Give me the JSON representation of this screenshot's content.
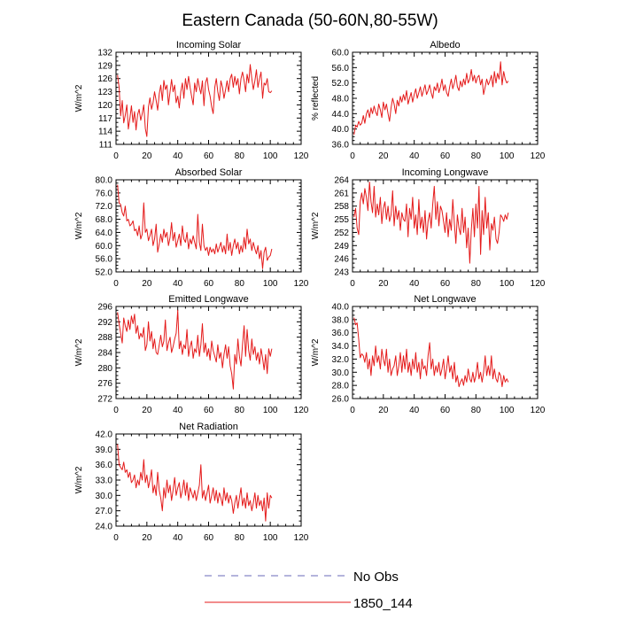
{
  "title": "Eastern Canada (50-60N,80-55W)",
  "legend": [
    {
      "label": "No Obs",
      "color": "#6a6ab8",
      "dash": true
    },
    {
      "label": "1850_144",
      "color": "#e41a1a",
      "dash": false
    }
  ],
  "chart_data": [
    {
      "type": "line",
      "title": "Incoming Solar",
      "ylabel": "W/m^2",
      "xlim": [
        0,
        120
      ],
      "xticks": [
        0,
        20,
        40,
        60,
        80,
        100,
        120
      ],
      "ylim": [
        111,
        132
      ],
      "yticks": [
        111,
        114,
        117,
        120,
        123,
        126,
        129,
        132
      ],
      "ytick_labels": [
        "111",
        "114",
        "117",
        "120",
        "123",
        "126",
        "129",
        "132"
      ],
      "color": "#e41a1a",
      "series": [
        {
          "name": "1850_144",
          "x_start": 1,
          "values": [
            126.8,
            124.0,
            117.5,
            121.0,
            115.9,
            117.6,
            120.0,
            114.5,
            117.0,
            119.8,
            116.0,
            118.5,
            114.3,
            117.8,
            119.0,
            116.5,
            118.0,
            120.0,
            114.6,
            112.8,
            119.5,
            121.6,
            119.0,
            120.5,
            123.0,
            121.0,
            118.8,
            122.5,
            124.5,
            121.0,
            125.6,
            123.5,
            124.5,
            120.0,
            123.0,
            125.8,
            123.0,
            124.5,
            120.5,
            122.0,
            119.3,
            123.0,
            125.0,
            121.5,
            126.0,
            123.5,
            126.5,
            124.0,
            122.0,
            120.0,
            125.0,
            123.0,
            126.0,
            124.0,
            122.5,
            125.5,
            119.8,
            125.0,
            126.2,
            123.5,
            122.0,
            119.5,
            118.0,
            124.0,
            126.0,
            123.0,
            121.0,
            125.5,
            124.0,
            121.5,
            123.5,
            125.5,
            123.0,
            126.0,
            127.0,
            124.0,
            126.5,
            124.5,
            126.0,
            122.5,
            126.0,
            127.5,
            125.5,
            123.0,
            127.0,
            125.0,
            129.2,
            126.0,
            123.5,
            125.5,
            128.0,
            124.0,
            126.0,
            127.5,
            121.5,
            125.0,
            124.5,
            126.0,
            123.0,
            122.8,
            123.2
          ]
        }
      ]
    },
    {
      "type": "line",
      "title": "Albedo",
      "ylabel": "% reflected",
      "xlim": [
        0,
        120
      ],
      "xticks": [
        0,
        20,
        40,
        60,
        80,
        100,
        120
      ],
      "ylim": [
        36,
        60
      ],
      "yticks": [
        36,
        40,
        44,
        48,
        52,
        56,
        60
      ],
      "ytick_labels": [
        "36.0",
        "40.0",
        "44.0",
        "48.0",
        "52.0",
        "56.0",
        "60.0"
      ],
      "color": "#e41a1a",
      "series": [
        {
          "name": "1850_144",
          "x_start": 1,
          "values": [
            38.5,
            41.0,
            40.5,
            42.0,
            41.0,
            41.5,
            43.5,
            41.5,
            44.0,
            45.0,
            43.0,
            45.5,
            44.0,
            46.0,
            44.5,
            43.5,
            46.5,
            45.0,
            43.0,
            47.0,
            45.0,
            46.5,
            44.0,
            42.0,
            45.5,
            48.0,
            46.5,
            44.0,
            47.5,
            46.0,
            48.5,
            47.0,
            49.0,
            47.5,
            50.0,
            46.5,
            48.0,
            49.5,
            47.0,
            49.0,
            50.5,
            48.0,
            49.5,
            51.0,
            48.5,
            50.0,
            51.5,
            49.0,
            50.0,
            51.5,
            49.5,
            48.0,
            51.0,
            50.0,
            52.0,
            49.5,
            51.0,
            53.0,
            50.0,
            51.5,
            49.5,
            48.5,
            51.0,
            53.0,
            50.5,
            52.0,
            54.0,
            51.0,
            50.0,
            52.5,
            51.0,
            53.0,
            51.5,
            54.5,
            52.0,
            53.0,
            55.5,
            52.5,
            54.0,
            52.0,
            53.5,
            54.0,
            51.5,
            53.0,
            49.0,
            51.0,
            53.0,
            51.5,
            52.5,
            54.0,
            51.0,
            55.0,
            52.0,
            54.5,
            53.0,
            57.5,
            51.5,
            55.0,
            53.0,
            52.0,
            52.5
          ]
        }
      ]
    },
    {
      "type": "line",
      "title": "Absorbed Solar",
      "ylabel": "W/m^2",
      "xlim": [
        0,
        120
      ],
      "xticks": [
        0,
        20,
        40,
        60,
        80,
        100,
        120
      ],
      "ylim": [
        52,
        80
      ],
      "yticks": [
        52,
        56,
        60,
        64,
        68,
        72,
        76,
        80
      ],
      "ytick_labels": [
        "52.0",
        "56.0",
        "60.0",
        "64.0",
        "68.0",
        "72.0",
        "76.0",
        "80.0"
      ],
      "color": "#e41a1a",
      "series": [
        {
          "name": "1850_144",
          "x_start": 1,
          "values": [
            78.5,
            73.0,
            72.5,
            70.0,
            69.0,
            72.0,
            67.5,
            68.0,
            66.0,
            66.5,
            67.5,
            64.5,
            65.0,
            63.0,
            66.0,
            62.0,
            63.5,
            73.0,
            64.0,
            65.0,
            61.5,
            63.0,
            65.0,
            60.0,
            62.0,
            66.5,
            58.0,
            60.5,
            63.5,
            61.0,
            65.0,
            62.5,
            64.0,
            60.0,
            62.5,
            67.0,
            61.5,
            64.0,
            59.5,
            61.5,
            63.5,
            60.0,
            66.0,
            62.0,
            61.0,
            64.0,
            59.0,
            62.0,
            60.5,
            63.0,
            61.0,
            59.0,
            69.5,
            61.0,
            58.5,
            66.5,
            60.0,
            58.5,
            59.5,
            57.0,
            59.5,
            58.0,
            59.0,
            57.5,
            60.5,
            58.0,
            59.5,
            61.0,
            58.0,
            60.0,
            57.5,
            63.5,
            58.5,
            61.0,
            57.0,
            60.0,
            62.0,
            59.0,
            61.0,
            57.5,
            60.0,
            58.0,
            62.5,
            59.0,
            65.0,
            60.5,
            62.0,
            58.5,
            61.0,
            59.0,
            57.5,
            60.0,
            56.0,
            58.5,
            53.0,
            58.0,
            59.5,
            55.5,
            56.5,
            57.0,
            59.0
          ]
        }
      ]
    },
    {
      "type": "line",
      "title": "Incoming Longwave",
      "ylabel": "W/m^2",
      "xlim": [
        0,
        120
      ],
      "xticks": [
        0,
        20,
        40,
        60,
        80,
        100,
        120
      ],
      "ylim": [
        243,
        264
      ],
      "yticks": [
        243,
        246,
        249,
        252,
        255,
        258,
        261,
        264
      ],
      "ytick_labels": [
        "243",
        "246",
        "249",
        "252",
        "255",
        "258",
        "261",
        "264"
      ],
      "color": "#e41a1a",
      "series": [
        {
          "name": "1850_144",
          "x_start": 1,
          "values": [
            255.5,
            257.5,
            253.0,
            251.5,
            259.0,
            261.0,
            258.5,
            262.0,
            260.0,
            257.0,
            263.5,
            259.0,
            256.5,
            262.5,
            255.5,
            258.5,
            256.0,
            260.0,
            254.0,
            257.5,
            259.0,
            255.0,
            258.0,
            254.5,
            256.0,
            261.5,
            253.5,
            258.0,
            255.0,
            257.0,
            252.5,
            256.5,
            255.0,
            254.5,
            258.5,
            251.0,
            257.5,
            255.0,
            260.0,
            253.0,
            256.0,
            251.5,
            259.5,
            253.0,
            255.5,
            252.0,
            257.0,
            250.5,
            254.5,
            256.5,
            253.0,
            258.5,
            262.5,
            255.0,
            259.0,
            253.5,
            258.0,
            257.0,
            254.5,
            252.0,
            256.5,
            251.0,
            255.0,
            252.5,
            259.5,
            254.0,
            249.5,
            256.0,
            253.0,
            251.5,
            257.5,
            252.0,
            255.5,
            248.5,
            253.0,
            245.0,
            252.5,
            257.5,
            251.0,
            258.5,
            253.0,
            262.5,
            247.0,
            257.0,
            251.5,
            260.0,
            253.0,
            256.5,
            248.0,
            254.0,
            252.5,
            255.5,
            250.5,
            249.5,
            252.0,
            256.0,
            255.5,
            254.5,
            256.0,
            255.0,
            256.5
          ]
        }
      ]
    },
    {
      "type": "line",
      "title": "Emitted Longwave",
      "ylabel": "W/m^2",
      "xlim": [
        0,
        120
      ],
      "xticks": [
        0,
        20,
        40,
        60,
        80,
        100,
        120
      ],
      "ylim": [
        272,
        296
      ],
      "yticks": [
        272,
        276,
        280,
        284,
        288,
        292,
        296
      ],
      "ytick_labels": [
        "272",
        "276",
        "280",
        "284",
        "288",
        "292",
        "296"
      ],
      "color": "#e41a1a",
      "series": [
        {
          "name": "1850_144",
          "x_start": 1,
          "values": [
            294.5,
            291.5,
            289.0,
            286.5,
            293.0,
            291.0,
            289.5,
            292.5,
            290.0,
            293.5,
            291.5,
            294.0,
            289.0,
            291.0,
            287.5,
            289.0,
            288.0,
            290.5,
            284.5,
            286.0,
            292.0,
            287.0,
            289.5,
            285.0,
            287.5,
            284.0,
            283.5,
            286.0,
            288.5,
            285.5,
            287.0,
            292.5,
            284.5,
            286.5,
            288.0,
            284.0,
            285.5,
            287.5,
            289.0,
            295.0,
            285.0,
            287.0,
            283.5,
            286.0,
            285.0,
            290.0,
            283.0,
            285.5,
            287.0,
            282.5,
            285.0,
            284.0,
            288.5,
            283.0,
            286.0,
            291.5,
            284.0,
            286.5,
            283.0,
            285.0,
            282.0,
            287.0,
            284.5,
            283.0,
            281.5,
            286.0,
            282.5,
            284.0,
            280.0,
            283.5,
            286.0,
            282.5,
            285.5,
            280.5,
            278.5,
            274.5,
            283.5,
            281.0,
            287.5,
            283.0,
            280.5,
            286.0,
            291.0,
            283.0,
            290.0,
            284.5,
            282.0,
            287.5,
            283.5,
            285.5,
            282.0,
            284.0,
            281.0,
            285.0,
            282.5,
            279.5,
            283.5,
            278.5,
            285.0,
            283.0,
            285.0
          ]
        }
      ]
    },
    {
      "type": "line",
      "title": "Net Longwave",
      "ylabel": "W/m^2",
      "xlim": [
        0,
        120
      ],
      "xticks": [
        0,
        20,
        40,
        60,
        80,
        100,
        120
      ],
      "ylim": [
        26,
        40
      ],
      "yticks": [
        26,
        28,
        30,
        32,
        34,
        36,
        38,
        40
      ],
      "ytick_labels": [
        "26.0",
        "28.0",
        "30.0",
        "32.0",
        "34.0",
        "36.0",
        "38.0",
        "40.0"
      ],
      "color": "#e41a1a",
      "series": [
        {
          "name": "1850_144",
          "x_start": 1,
          "values": [
            38.3,
            37.2,
            37.5,
            35.0,
            32.2,
            32.8,
            32.5,
            31.5,
            33.0,
            30.5,
            32.0,
            29.5,
            32.5,
            31.0,
            34.0,
            31.5,
            32.5,
            30.5,
            33.5,
            32.0,
            31.0,
            33.5,
            30.0,
            32.0,
            29.5,
            30.5,
            31.0,
            32.5,
            29.5,
            31.0,
            33.0,
            30.0,
            32.5,
            30.5,
            33.5,
            30.0,
            31.5,
            29.5,
            32.0,
            30.5,
            33.0,
            30.0,
            31.5,
            29.0,
            32.0,
            30.5,
            31.0,
            29.5,
            32.5,
            34.5,
            30.5,
            32.0,
            29.5,
            31.0,
            30.0,
            31.5,
            29.5,
            30.5,
            32.0,
            29.0,
            30.5,
            32.5,
            30.0,
            31.0,
            29.0,
            31.5,
            28.5,
            29.5,
            27.8,
            28.5,
            29.0,
            28.0,
            29.5,
            28.5,
            30.5,
            29.0,
            28.5,
            30.0,
            28.5,
            29.5,
            31.5,
            29.0,
            30.0,
            28.5,
            30.0,
            32.5,
            29.5,
            31.0,
            29.5,
            32.5,
            29.0,
            30.5,
            29.0,
            28.5,
            30.0,
            29.5,
            27.8,
            29.5,
            28.5,
            29.0,
            28.5
          ]
        }
      ]
    },
    {
      "type": "line",
      "title": "Net Radiation",
      "ylabel": "W/m^2",
      "xlim": [
        0,
        120
      ],
      "xticks": [
        0,
        20,
        40,
        60,
        80,
        100,
        120
      ],
      "ylim": [
        24,
        42
      ],
      "yticks": [
        24,
        27,
        30,
        33,
        36,
        39,
        42
      ],
      "ytick_labels": [
        "24.0",
        "27.0",
        "30.0",
        "33.0",
        "36.0",
        "39.0",
        "42.0"
      ],
      "color": "#e41a1a",
      "series": [
        {
          "name": "1850_144",
          "x_start": 1,
          "values": [
            40.0,
            36.0,
            35.5,
            35.0,
            36.5,
            34.5,
            35.0,
            33.5,
            34.5,
            32.5,
            33.0,
            34.0,
            31.5,
            33.0,
            32.0,
            34.5,
            33.0,
            37.0,
            32.5,
            34.0,
            31.5,
            33.0,
            35.0,
            30.5,
            32.0,
            30.0,
            34.5,
            31.0,
            29.5,
            27.0,
            31.5,
            29.5,
            33.0,
            30.5,
            32.0,
            29.0,
            31.0,
            33.5,
            30.0,
            31.5,
            32.5,
            29.5,
            31.0,
            33.0,
            30.0,
            32.5,
            29.0,
            31.5,
            30.5,
            29.5,
            31.0,
            29.0,
            30.5,
            32.0,
            36.0,
            29.5,
            31.0,
            29.0,
            30.5,
            32.0,
            28.5,
            30.0,
            31.5,
            29.0,
            31.0,
            28.5,
            30.5,
            29.5,
            28.0,
            31.5,
            29.0,
            30.5,
            28.5,
            30.0,
            29.0,
            26.5,
            28.5,
            30.0,
            27.5,
            29.5,
            31.5,
            28.0,
            29.5,
            27.5,
            30.5,
            28.0,
            29.0,
            27.0,
            28.5,
            30.5,
            27.5,
            30.0,
            28.0,
            29.0,
            27.0,
            29.5,
            25.0,
            30.5,
            27.5,
            30.0,
            29.5
          ]
        }
      ]
    }
  ]
}
